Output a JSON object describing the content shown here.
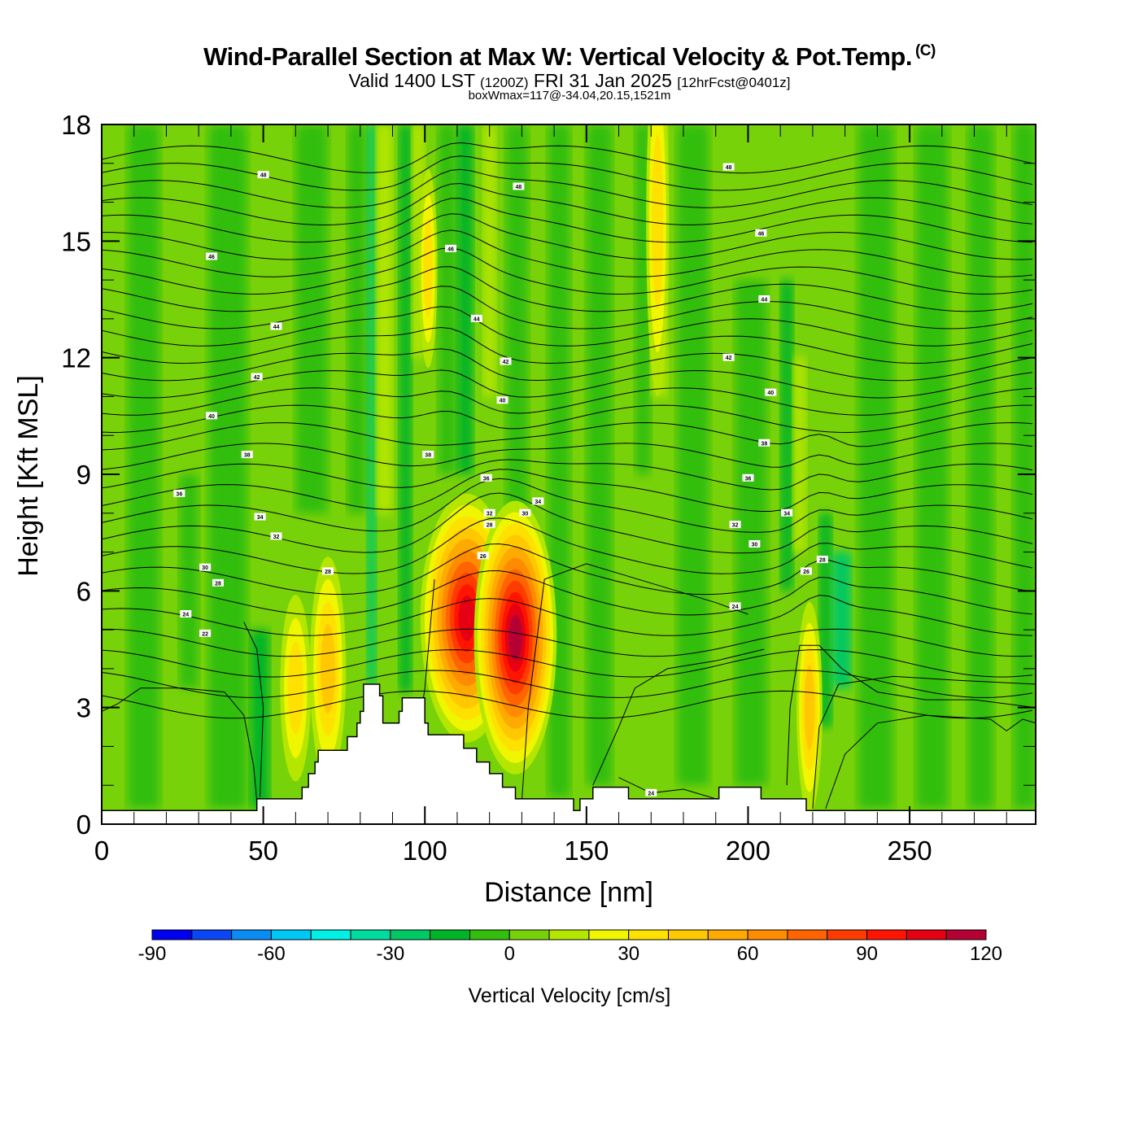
{
  "header": {
    "title": "Wind-Parallel Section at Max W: Vertical Velocity & Pot.Temp.",
    "copyright": "(C)",
    "valid_prefix": "Valid 1400 LST",
    "valid_utc": "(1200Z)",
    "valid_date": "FRI 31 Jan 2025",
    "forecast": "[12hrFcst@0401z]",
    "box_wmax": "boxWmax=117@-34.04,20.15,1521m"
  },
  "chart_data": {
    "type": "heatmap",
    "title": "Wind-Parallel Section at Max W: Vertical Velocity & Pot.Temp.",
    "xlabel": "Distance [nm]",
    "ylabel": "Height [Kft MSL]",
    "xlim": [
      0,
      289
    ],
    "ylim": [
      0,
      18
    ],
    "xticks": [
      0,
      50,
      100,
      150,
      200,
      250
    ],
    "yticks": [
      0,
      3,
      6,
      9,
      12,
      15,
      18
    ],
    "colorbar": {
      "label": "Vertical Velocity [cm/s]",
      "levels": [
        -90,
        -80,
        -70,
        -60,
        -50,
        -40,
        -30,
        -20,
        -10,
        0,
        10,
        20,
        30,
        40,
        50,
        60,
        70,
        80,
        90,
        100,
        110,
        120
      ],
      "tick_labels": [
        "-90",
        "-60",
        "-30",
        "0",
        "30",
        "60",
        "90",
        "120"
      ],
      "tick_values": [
        -90,
        -60,
        -30,
        0,
        30,
        60,
        90,
        120
      ],
      "colors": [
        "#0000f0",
        "#0a46f5",
        "#0a8cf5",
        "#00c8f5",
        "#00f0e6",
        "#00dca0",
        "#00c864",
        "#00b428",
        "#32be0a",
        "#78d20a",
        "#b4e600",
        "#f0f500",
        "#ffe100",
        "#ffc800",
        "#ffaa00",
        "#ff8c00",
        "#ff6400",
        "#ff3c00",
        "#ff1400",
        "#e60014",
        "#b40032"
      ]
    },
    "max_w": {
      "value_cm_s": 117,
      "lat": -34.04,
      "lon": 20.15,
      "height_m": 1521
    },
    "updraft_cores": [
      {
        "x_nm": 113,
        "height_kft": 5.3,
        "peak_cm_s": 100
      },
      {
        "x_nm": 128,
        "height_kft": 4.8,
        "peak_cm_s": 110
      },
      {
        "x_nm": 70,
        "height_kft": 4.0,
        "peak_cm_s": 40
      },
      {
        "x_nm": 60,
        "height_kft": 3.5,
        "peak_cm_s": 30
      },
      {
        "x_nm": 219,
        "height_kft": 3.0,
        "peak_cm_s": 40
      },
      {
        "x_nm": 172,
        "height_kft": 16.0,
        "peak_cm_s": 30
      },
      {
        "x_nm": 101,
        "height_kft": 14.5,
        "peak_cm_s": 30
      }
    ],
    "terrain_steps": [
      {
        "x": 0,
        "h": 0.35
      },
      {
        "x": 47,
        "h": 0.35
      },
      {
        "x": 48,
        "h": 0.65
      },
      {
        "x": 61,
        "h": 0.65
      },
      {
        "x": 62,
        "h": 0.95
      },
      {
        "x": 64,
        "h": 1.3
      },
      {
        "x": 66,
        "h": 1.6
      },
      {
        "x": 67,
        "h": 1.9
      },
      {
        "x": 75,
        "h": 1.9
      },
      {
        "x": 76,
        "h": 2.25
      },
      {
        "x": 78,
        "h": 2.25
      },
      {
        "x": 79,
        "h": 2.6
      },
      {
        "x": 80,
        "h": 2.9
      },
      {
        "x": 81,
        "h": 3.6
      },
      {
        "x": 85,
        "h": 3.6
      },
      {
        "x": 86,
        "h": 3.3
      },
      {
        "x": 87,
        "h": 2.6
      },
      {
        "x": 91,
        "h": 2.6
      },
      {
        "x": 92,
        "h": 2.9
      },
      {
        "x": 93,
        "h": 3.25
      },
      {
        "x": 99,
        "h": 3.25
      },
      {
        "x": 100,
        "h": 2.6
      },
      {
        "x": 101,
        "h": 2.3
      },
      {
        "x": 110,
        "h": 2.3
      },
      {
        "x": 112,
        "h": 1.95
      },
      {
        "x": 116,
        "h": 1.6
      },
      {
        "x": 120,
        "h": 1.3
      },
      {
        "x": 124,
        "h": 0.95
      },
      {
        "x": 128,
        "h": 0.65
      },
      {
        "x": 145,
        "h": 0.65
      },
      {
        "x": 146,
        "h": 0.35
      },
      {
        "x": 147,
        "h": 0.35
      },
      {
        "x": 148,
        "h": 0.65
      },
      {
        "x": 151,
        "h": 0.65
      },
      {
        "x": 152,
        "h": 0.95
      },
      {
        "x": 162,
        "h": 0.95
      },
      {
        "x": 163,
        "h": 0.65
      },
      {
        "x": 190,
        "h": 0.65
      },
      {
        "x": 191,
        "h": 0.95
      },
      {
        "x": 203,
        "h": 0.95
      },
      {
        "x": 204,
        "h": 0.65
      },
      {
        "x": 217,
        "h": 0.65
      },
      {
        "x": 218,
        "h": 0.35
      },
      {
        "x": 289,
        "h": 0.35
      }
    ],
    "contour_labels": [
      {
        "text": "48",
        "x": 50,
        "h": 16.7
      },
      {
        "text": "48",
        "x": 129,
        "h": 16.4
      },
      {
        "text": "48",
        "x": 194,
        "h": 16.9
      },
      {
        "text": "46",
        "x": 34,
        "h": 14.6
      },
      {
        "text": "46",
        "x": 108,
        "h": 14.8
      },
      {
        "text": "46",
        "x": 204,
        "h": 15.2
      },
      {
        "text": "44",
        "x": 54,
        "h": 12.8
      },
      {
        "text": "44",
        "x": 116,
        "h": 13.0
      },
      {
        "text": "44",
        "x": 205,
        "h": 13.5
      },
      {
        "text": "42",
        "x": 48,
        "h": 11.5
      },
      {
        "text": "42",
        "x": 125,
        "h": 11.9
      },
      {
        "text": "42",
        "x": 194,
        "h": 12.0
      },
      {
        "text": "40",
        "x": 34,
        "h": 10.5
      },
      {
        "text": "40",
        "x": 124,
        "h": 10.9
      },
      {
        "text": "40",
        "x": 207,
        "h": 11.1
      },
      {
        "text": "38",
        "x": 45,
        "h": 9.5
      },
      {
        "text": "38",
        "x": 101,
        "h": 9.5
      },
      {
        "text": "38",
        "x": 205,
        "h": 9.8
      },
      {
        "text": "36",
        "x": 24,
        "h": 8.5
      },
      {
        "text": "36",
        "x": 119,
        "h": 8.9
      },
      {
        "text": "36",
        "x": 200,
        "h": 8.9
      },
      {
        "text": "34",
        "x": 49,
        "h": 7.9
      },
      {
        "text": "34",
        "x": 135,
        "h": 8.3
      },
      {
        "text": "34",
        "x": 212,
        "h": 8.0
      },
      {
        "text": "32",
        "x": 54,
        "h": 7.4
      },
      {
        "text": "32",
        "x": 120,
        "h": 8.0
      },
      {
        "text": "32",
        "x": 196,
        "h": 7.7
      },
      {
        "text": "30",
        "x": 32,
        "h": 6.6
      },
      {
        "text": "30",
        "x": 131,
        "h": 8.0
      },
      {
        "text": "30",
        "x": 202,
        "h": 7.2
      },
      {
        "text": "28",
        "x": 36,
        "h": 6.2
      },
      {
        "text": "28",
        "x": 70,
        "h": 6.5
      },
      {
        "text": "28",
        "x": 120,
        "h": 7.7
      },
      {
        "text": "28",
        "x": 223,
        "h": 6.8
      },
      {
        "text": "26",
        "x": 118,
        "h": 6.9
      },
      {
        "text": "26",
        "x": 218,
        "h": 6.5
      },
      {
        "text": "24",
        "x": 26,
        "h": 5.4
      },
      {
        "text": "24",
        "x": 196,
        "h": 5.6
      },
      {
        "text": "24",
        "x": 170,
        "h": 0.8
      },
      {
        "text": "22",
        "x": 32,
        "h": 4.9
      }
    ]
  }
}
